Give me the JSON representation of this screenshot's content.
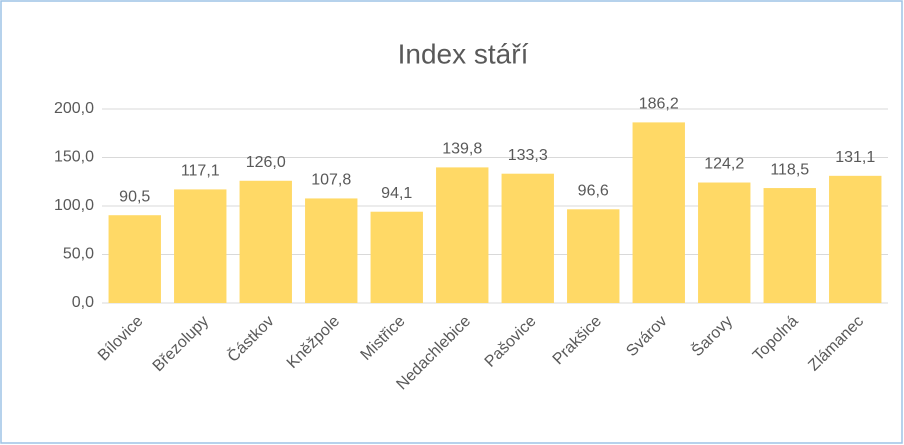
{
  "chart_data": {
    "type": "bar",
    "title": "Index stáří",
    "categories": [
      "Bílovice",
      "Březolupy",
      "Částkov",
      "Kněžpole",
      "Mistřice",
      "Nedachlebice",
      "Pašovice",
      "Prakšice",
      "Svárov",
      "Šarovy",
      "Topolná",
      "Zlámanec"
    ],
    "values": [
      90.5,
      117.1,
      126.0,
      107.8,
      94.1,
      139.8,
      133.3,
      96.6,
      186.2,
      124.2,
      118.5,
      131.1
    ],
    "value_labels": [
      "90,5",
      "117,1",
      "126,0",
      "107,8",
      "94,1",
      "139,8",
      "133,3",
      "96,6",
      "186,2",
      "124,2",
      "118,5",
      "131,1"
    ],
    "color": "#ffd966",
    "ylim": [
      0,
      200
    ],
    "yticks": [
      {
        "value": 0,
        "label": "0,0"
      },
      {
        "value": 50,
        "label": "50,0"
      },
      {
        "value": 100,
        "label": "100,0"
      },
      {
        "value": 150,
        "label": "150,0"
      },
      {
        "value": 200,
        "label": "200,0"
      }
    ],
    "grid": true
  }
}
